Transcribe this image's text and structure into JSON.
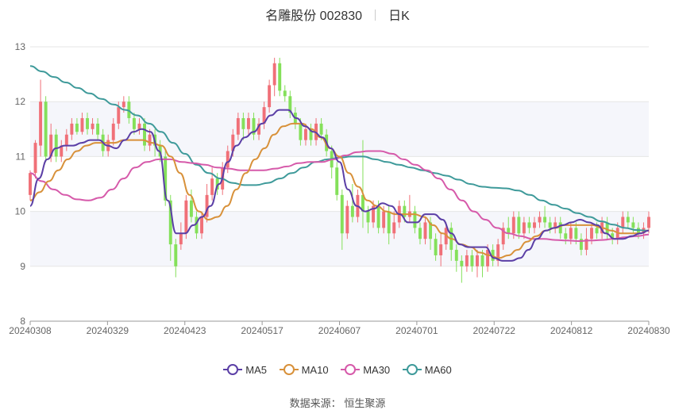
{
  "header": {
    "stock_label": "名雕股份 002830",
    "period_label": "日K"
  },
  "source": {
    "label": "数据来源：",
    "value": "恒生聚源"
  },
  "colors": {
    "up": "#f07078",
    "down": "#84e05a",
    "ma5": "#5b3fa6",
    "ma10": "#d8913a",
    "ma30": "#d65aaa",
    "ma60": "#3e9a9a"
  },
  "chart_data": {
    "type": "candlestick",
    "ylim": [
      8,
      13
    ],
    "yticks": [
      "8",
      "9",
      "10",
      "11",
      "12",
      "13"
    ],
    "xticks": [
      "20240308",
      "20240329",
      "20240423",
      "20240517",
      "20240607",
      "20240701",
      "20240722",
      "20240812",
      "20240830"
    ],
    "grid": true,
    "legend_position": "bottom",
    "series": [
      {
        "name": "MA5",
        "color_key": "ma5"
      },
      {
        "name": "MA10",
        "color_key": "ma10"
      },
      {
        "name": "MA30",
        "color_key": "ma30"
      },
      {
        "name": "MA60",
        "color_key": "ma60"
      }
    ],
    "trading_days": 120,
    "candles": [
      [
        10.3,
        10.7,
        10.2,
        10.75
      ],
      [
        10.7,
        11.25,
        10.6,
        11.3
      ],
      [
        11.2,
        12.0,
        11.0,
        12.4
      ],
      [
        12.0,
        11.0,
        10.9,
        12.1
      ],
      [
        11.0,
        11.4,
        10.9,
        11.6
      ],
      [
        11.4,
        11.0,
        10.9,
        11.5
      ],
      [
        11.0,
        11.2,
        10.9,
        11.3
      ],
      [
        11.2,
        11.4,
        11.1,
        11.5
      ],
      [
        11.4,
        11.6,
        11.3,
        11.7
      ],
      [
        11.6,
        11.45,
        11.4,
        11.7
      ],
      [
        11.45,
        11.7,
        11.4,
        11.8
      ],
      [
        11.7,
        11.5,
        11.4,
        11.8
      ],
      [
        11.5,
        11.6,
        11.4,
        11.7
      ],
      [
        11.6,
        11.4,
        11.3,
        11.7
      ],
      [
        11.4,
        11.1,
        11.0,
        11.5
      ],
      [
        11.1,
        11.3,
        11.0,
        11.4
      ],
      [
        11.3,
        11.6,
        11.2,
        11.7
      ],
      [
        11.6,
        11.9,
        11.5,
        12.0
      ],
      [
        11.9,
        12.0,
        11.8,
        12.1
      ],
      [
        12.0,
        11.7,
        11.6,
        12.1
      ],
      [
        11.7,
        11.5,
        11.4,
        11.8
      ],
      [
        11.5,
        11.6,
        11.4,
        11.7
      ],
      [
        11.6,
        11.2,
        11.1,
        11.7
      ],
      [
        11.2,
        11.4,
        11.1,
        11.5
      ],
      [
        11.4,
        11.2,
        11.0,
        11.5
      ],
      [
        11.2,
        11.0,
        10.9,
        11.3
      ],
      [
        11.0,
        10.2,
        10.1,
        11.1
      ],
      [
        10.2,
        9.4,
        9.1,
        10.3
      ],
      [
        9.4,
        9.0,
        8.8,
        9.5
      ],
      [
        9.4,
        9.6,
        9.3,
        9.8
      ],
      [
        9.6,
        10.2,
        9.5,
        10.3
      ],
      [
        10.2,
        9.9,
        9.8,
        10.4
      ],
      [
        9.9,
        9.6,
        9.5,
        10.0
      ],
      [
        9.6,
        9.9,
        9.5,
        10.0
      ],
      [
        9.9,
        10.3,
        9.8,
        10.5
      ],
      [
        10.3,
        10.6,
        10.2,
        10.8
      ],
      [
        10.6,
        10.4,
        10.3,
        10.7
      ],
      [
        10.4,
        10.8,
        10.3,
        10.9
      ],
      [
        10.8,
        11.1,
        10.7,
        11.2
      ],
      [
        11.1,
        11.4,
        11.0,
        11.5
      ],
      [
        11.4,
        11.7,
        11.3,
        11.8
      ],
      [
        11.7,
        11.5,
        11.3,
        11.8
      ],
      [
        11.5,
        11.7,
        11.4,
        11.8
      ],
      [
        11.7,
        11.4,
        11.3,
        11.8
      ],
      [
        11.4,
        11.6,
        11.3,
        11.7
      ],
      [
        11.6,
        11.9,
        11.5,
        12.0
      ],
      [
        11.9,
        12.3,
        11.8,
        12.4
      ],
      [
        12.3,
        12.7,
        12.1,
        12.8
      ],
      [
        12.7,
        12.2,
        12.1,
        12.8
      ],
      [
        12.2,
        12.1,
        12.0,
        12.3
      ],
      [
        12.1,
        11.8,
        11.7,
        12.2
      ],
      [
        11.8,
        11.6,
        11.5,
        11.9
      ],
      [
        11.6,
        11.3,
        11.2,
        11.7
      ],
      [
        11.3,
        11.5,
        11.2,
        11.6
      ],
      [
        11.5,
        11.3,
        11.2,
        11.6
      ],
      [
        11.3,
        11.6,
        11.2,
        11.7
      ],
      [
        11.6,
        11.4,
        11.3,
        11.7
      ],
      [
        11.4,
        11.1,
        11.0,
        11.5
      ],
      [
        11.1,
        10.8,
        10.6,
        11.2
      ],
      [
        10.8,
        10.3,
        10.2,
        10.9
      ],
      [
        10.3,
        9.6,
        9.3,
        10.4
      ],
      [
        9.6,
        10.1,
        9.5,
        10.2
      ],
      [
        10.1,
        9.9,
        9.8,
        10.5
      ],
      [
        9.9,
        10.3,
        9.8,
        10.4
      ],
      [
        10.3,
        10.0,
        9.7,
        11.3
      ],
      [
        10.0,
        9.8,
        9.6,
        10.1
      ],
      [
        9.8,
        10.1,
        9.7,
        10.2
      ],
      [
        10.1,
        9.7,
        9.6,
        10.2
      ],
      [
        9.7,
        10.0,
        9.6,
        10.1
      ],
      [
        10.0,
        9.6,
        9.4,
        10.1
      ],
      [
        9.6,
        9.8,
        9.5,
        10.0
      ],
      [
        9.8,
        10.1,
        9.7,
        10.2
      ],
      [
        10.1,
        9.9,
        9.8,
        10.2
      ],
      [
        9.9,
        10.0,
        9.8,
        10.3
      ],
      [
        10.0,
        9.7,
        9.6,
        10.1
      ],
      [
        9.7,
        9.5,
        9.4,
        9.8
      ],
      [
        9.5,
        9.8,
        9.4,
        9.9
      ],
      [
        9.8,
        9.5,
        9.3,
        9.9
      ],
      [
        9.5,
        9.2,
        9.1,
        9.6
      ],
      [
        9.2,
        9.4,
        9.0,
        9.6
      ],
      [
        9.4,
        9.7,
        9.3,
        9.8
      ],
      [
        9.7,
        9.3,
        9.1,
        9.8
      ],
      [
        9.3,
        9.1,
        8.9,
        9.4
      ],
      [
        9.1,
        9.0,
        8.7,
        9.2
      ],
      [
        9.0,
        9.2,
        8.9,
        9.3
      ],
      [
        9.2,
        9.0,
        8.9,
        9.3
      ],
      [
        9.0,
        9.2,
        8.8,
        9.3
      ],
      [
        9.2,
        9.0,
        8.8,
        9.3
      ],
      [
        9.0,
        9.3,
        8.9,
        9.4
      ],
      [
        9.3,
        9.1,
        9.0,
        9.4
      ],
      [
        9.1,
        9.4,
        9.0,
        9.5
      ],
      [
        9.4,
        9.7,
        9.3,
        9.8
      ],
      [
        9.7,
        9.6,
        9.5,
        9.9
      ],
      [
        9.6,
        9.9,
        9.5,
        10.0
      ],
      [
        9.9,
        9.6,
        9.5,
        10.0
      ],
      [
        9.6,
        9.8,
        9.5,
        9.9
      ],
      [
        9.8,
        9.7,
        9.6,
        9.9
      ],
      [
        9.7,
        9.8,
        9.6,
        9.9
      ],
      [
        9.8,
        9.9,
        9.7,
        10.0
      ],
      [
        9.9,
        9.8,
        9.7,
        10.1
      ],
      [
        9.8,
        9.7,
        9.6,
        9.9
      ],
      [
        9.7,
        9.8,
        9.6,
        9.9
      ],
      [
        9.8,
        9.6,
        9.5,
        9.9
      ],
      [
        9.6,
        9.5,
        9.4,
        9.7
      ],
      [
        9.5,
        9.7,
        9.4,
        9.8
      ],
      [
        9.7,
        9.5,
        9.4,
        9.8
      ],
      [
        9.5,
        9.3,
        9.2,
        9.6
      ],
      [
        9.3,
        9.5,
        9.2,
        9.7
      ],
      [
        9.5,
        9.7,
        9.4,
        9.8
      ],
      [
        9.7,
        9.6,
        9.5,
        9.8
      ],
      [
        9.6,
        9.8,
        9.5,
        9.9
      ],
      [
        9.8,
        9.6,
        9.5,
        9.9
      ],
      [
        9.6,
        9.5,
        9.4,
        9.7
      ],
      [
        9.5,
        9.7,
        9.4,
        9.8
      ],
      [
        9.7,
        9.9,
        9.6,
        10.0
      ],
      [
        9.9,
        9.8,
        9.7,
        10.0
      ],
      [
        9.8,
        9.7,
        9.6,
        9.9
      ],
      [
        9.7,
        9.6,
        9.5,
        9.8
      ],
      [
        9.6,
        9.7,
        9.5,
        9.8
      ],
      [
        9.7,
        9.9,
        9.6,
        10.0
      ]
    ],
    "ma5": [
      10.1,
      10.6,
      10.95,
      11.15,
      11.2,
      11.2,
      11.25,
      11.3,
      11.3,
      11.2,
      11.15,
      11.3,
      11.45,
      11.5,
      11.45,
      11.1,
      10.2,
      9.6,
      9.6,
      9.75,
      9.9,
      10.1,
      10.5,
      10.9,
      11.2,
      11.35,
      11.45,
      11.6,
      11.75,
      11.85,
      11.85,
      11.7,
      11.55,
      11.45,
      11.35,
      11.15,
      10.9,
      10.4,
      10.1,
      10.0,
      10.05,
      10.15,
      10.1,
      9.95,
      9.8,
      9.8,
      9.95,
      9.95,
      9.85,
      9.6,
      9.4,
      9.35,
      9.35,
      9.35,
      9.15,
      9.1,
      9.1,
      9.15,
      9.3,
      9.5,
      9.65,
      9.7,
      9.75,
      9.8,
      9.85,
      9.8,
      9.75,
      9.6,
      9.5,
      9.5,
      9.55,
      9.6,
      9.65
    ],
    "ma10": [
      10.2,
      10.35,
      10.55,
      10.75,
      10.95,
      11.1,
      11.2,
      11.25,
      11.25,
      11.25,
      11.3,
      11.3,
      11.3,
      11.25,
      11.2,
      11.0,
      10.7,
      10.3,
      10.0,
      9.85,
      9.9,
      10.1,
      10.4,
      10.7,
      10.95,
      11.15,
      11.4,
      11.55,
      11.6,
      11.6,
      11.5,
      11.35,
      11.15,
      11.0,
      10.7,
      10.45,
      10.2,
      10.1,
      10.0,
      9.95,
      9.95,
      9.95,
      9.9,
      9.75,
      9.6,
      9.5,
      9.4,
      9.35,
      9.25,
      9.2,
      9.15,
      9.2,
      9.3,
      9.45,
      9.55,
      9.65,
      9.7,
      9.75,
      9.75,
      9.75,
      9.75,
      9.7,
      9.65,
      9.6,
      9.6,
      9.6,
      9.65
    ],
    "ma30": [
      10.7,
      10.55,
      10.4,
      10.3,
      10.22,
      10.2,
      10.25,
      10.4,
      10.6,
      10.8,
      10.9,
      10.95,
      10.95,
      10.9,
      10.88,
      10.85,
      10.8,
      10.78,
      10.75,
      10.75,
      10.75,
      10.78,
      10.82,
      10.88,
      10.9,
      10.9,
      10.95,
      11.02,
      11.08,
      11.1,
      11.1,
      11.05,
      10.95,
      10.85,
      10.75,
      10.6,
      10.4,
      10.2,
      10.0,
      9.85,
      9.7,
      9.6,
      9.55,
      9.5,
      9.5,
      9.48,
      9.47,
      9.46,
      9.47,
      9.48,
      9.5,
      9.53,
      9.55,
      9.58
    ],
    "ma60": [
      12.65,
      12.55,
      12.45,
      12.35,
      12.25,
      12.15,
      12.05,
      11.95,
      11.85,
      11.75,
      11.6,
      11.45,
      11.25,
      11.05,
      10.85,
      10.7,
      10.6,
      10.52,
      10.48,
      10.48,
      10.52,
      10.6,
      10.7,
      10.8,
      10.9,
      10.95,
      10.98,
      11.0,
      11.0,
      10.95,
      10.9,
      10.85,
      10.8,
      10.75,
      10.7,
      10.65,
      10.58,
      10.5,
      10.45,
      10.43,
      10.42,
      10.38,
      10.3,
      10.2,
      10.12,
      10.05,
      9.97,
      9.9,
      9.82,
      9.76,
      9.7,
      9.66,
      9.65
    ]
  }
}
